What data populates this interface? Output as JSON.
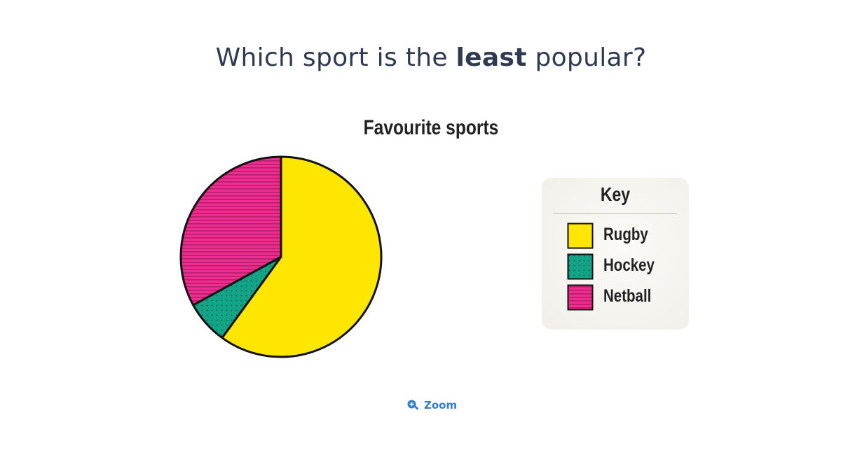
{
  "question": {
    "before": "Which sport is the ",
    "emphasis": "least",
    "after": " popular?"
  },
  "key": {
    "title": "Key"
  },
  "zoom": {
    "label": "Zoom",
    "icon": "zoom-in-icon",
    "color": "#2f7fd6"
  },
  "chart_data": {
    "type": "pie",
    "title": "Favourite sports",
    "legend_placement": "right",
    "categories": [
      "Rugby",
      "Hockey",
      "Netball"
    ],
    "values": [
      60,
      7,
      33
    ],
    "unit": "%",
    "colors": [
      "#ffe600",
      "#13a487",
      "#ef2c8f"
    ],
    "patterns": [
      "solid",
      "dots",
      "horizontal-stripes"
    ],
    "start_angle_deg": 0
  }
}
